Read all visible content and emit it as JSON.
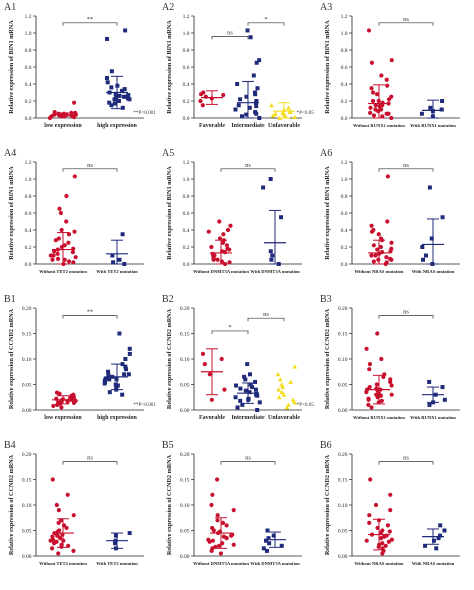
{
  "colors": {
    "red": "#c8102e",
    "navy": "#1f2a7a",
    "yellow": "#f3dd1e",
    "axis": "#222222"
  },
  "chart_data": [
    {
      "id": "A1",
      "type": "scatter",
      "ylabel": "Relative expression of BIN1 mRNA",
      "ylim": [
        0,
        1.2
      ],
      "yticks": [
        "0.0",
        "0.2",
        "0.4",
        "0.6",
        "0.8",
        "1.0",
        "1.2"
      ],
      "categories": [
        "low expression",
        "high expression"
      ],
      "colors": [
        "red",
        "navy"
      ],
      "points": [
        [
          0.0,
          0.01,
          0.02,
          0.02,
          0.03,
          0.03,
          0.04,
          0.04,
          0.05,
          0.05,
          0.06,
          0.06,
          0.07,
          0.04,
          0.03,
          0.02,
          0.18
        ],
        [
          0.12,
          0.15,
          0.17,
          0.18,
          0.2,
          0.22,
          0.23,
          0.24,
          0.25,
          0.26,
          0.27,
          0.28,
          0.3,
          0.32,
          0.34,
          0.36,
          0.38,
          0.42,
          0.47,
          0.55,
          0.93,
          1.03,
          0.2,
          0.22,
          0.25
        ]
      ],
      "means": [
        0.04,
        0.3
      ],
      "sds": [
        0.02,
        0.19
      ],
      "brackets": [
        {
          "from": 0,
          "to": 1,
          "label": "**",
          "y": 1.12
        }
      ],
      "note": "**P<0.001"
    },
    {
      "id": "A2",
      "type": "scatter",
      "ylabel": "Relative expression of BIN1 mRNA",
      "ylim": [
        0,
        1.2
      ],
      "yticks": [
        "0.0",
        "0.2",
        "0.4",
        "0.6",
        "0.8",
        "1.0",
        "1.2"
      ],
      "categories": [
        "Favorable",
        "Intermediate",
        "Unfavorable"
      ],
      "colors": [
        "red",
        "navy",
        "yellow"
      ],
      "points": [
        [
          0.15,
          0.2,
          0.23,
          0.25,
          0.27,
          0.28,
          0.3
        ],
        [
          0.0,
          0.02,
          0.04,
          0.05,
          0.07,
          0.1,
          0.12,
          0.14,
          0.15,
          0.18,
          0.2,
          0.22,
          0.25,
          0.28,
          0.3,
          0.35,
          0.4,
          0.5,
          0.65,
          0.68,
          0.95,
          1.03
        ],
        [
          0.0,
          0.01,
          0.02,
          0.03,
          0.04,
          0.05,
          0.06,
          0.07,
          0.08,
          0.1,
          0.12,
          0.15
        ]
      ],
      "means": [
        0.24,
        0.18,
        0.08
      ],
      "sds": [
        0.08,
        0.25,
        0.1
      ],
      "brackets": [
        {
          "from": 0,
          "to": 1,
          "label": "ns",
          "y": 0.96
        },
        {
          "from": 1,
          "to": 2,
          "label": "*",
          "y": 1.12
        }
      ],
      "note": "*P<0.05"
    },
    {
      "id": "A3",
      "type": "scatter",
      "ylabel": "Relative expression of BIN1 mRNA",
      "ylim": [
        0,
        1.2
      ],
      "yticks": [
        "0.0",
        "0.2",
        "0.4",
        "0.6",
        "0.8",
        "1.0",
        "1.2"
      ],
      "categories": [
        "Without RUNX1 mutation",
        "With RUNX1 mutation"
      ],
      "colors": [
        "red",
        "navy"
      ],
      "points": [
        [
          0.0,
          0.02,
          0.03,
          0.05,
          0.06,
          0.08,
          0.1,
          0.12,
          0.14,
          0.15,
          0.17,
          0.18,
          0.2,
          0.22,
          0.25,
          0.28,
          0.3,
          0.35,
          0.38,
          0.45,
          0.5,
          0.65,
          0.68,
          1.03,
          0.05,
          0.1,
          0.15,
          0.2
        ],
        [
          0.02,
          0.05,
          0.08,
          0.1,
          0.12,
          0.2
        ]
      ],
      "means": [
        0.17,
        0.09
      ],
      "sds": [
        0.22,
        0.12
      ],
      "brackets": [
        {
          "from": 0,
          "to": 1,
          "label": "ns",
          "y": 1.12
        }
      ]
    },
    {
      "id": "A4",
      "type": "scatter",
      "ylabel": "Relative expression of BIN1 mRNA",
      "ylim": [
        0,
        1.2
      ],
      "yticks": [
        "0.0",
        "0.2",
        "0.4",
        "0.6",
        "0.8",
        "1.0",
        "1.2"
      ],
      "categories": [
        "Without TET2 mutation",
        "With TET2 mutation"
      ],
      "colors": [
        "red",
        "navy"
      ],
      "points": [
        [
          0.0,
          0.02,
          0.03,
          0.05,
          0.06,
          0.08,
          0.1,
          0.12,
          0.14,
          0.15,
          0.17,
          0.18,
          0.2,
          0.22,
          0.25,
          0.28,
          0.3,
          0.35,
          0.38,
          0.4,
          0.5,
          0.6,
          0.65,
          0.8,
          1.03,
          0.05,
          0.1
        ],
        [
          0.0,
          0.02,
          0.05,
          0.1,
          0.35
        ]
      ],
      "means": [
        0.17,
        0.12
      ],
      "sds": [
        0.2,
        0.16
      ],
      "brackets": [
        {
          "from": 0,
          "to": 1,
          "label": "ns",
          "y": 1.12
        }
      ]
    },
    {
      "id": "A5",
      "type": "scatter",
      "ylabel": "Relative expression of BIN1 mRNA",
      "ylim": [
        0,
        1.2
      ],
      "yticks": [
        "0.0",
        "0.2",
        "0.4",
        "0.6",
        "0.8",
        "1.0",
        "1.2"
      ],
      "categories": [
        "Without DNMT3A mutation",
        "With DNMT3A mutation"
      ],
      "colors": [
        "red",
        "navy"
      ],
      "points": [
        [
          0.0,
          0.02,
          0.03,
          0.05,
          0.06,
          0.08,
          0.1,
          0.12,
          0.14,
          0.15,
          0.17,
          0.18,
          0.2,
          0.22,
          0.25,
          0.28,
          0.3,
          0.35,
          0.38,
          0.4,
          0.45,
          0.5,
          0.05,
          0.1
        ],
        [
          0.0,
          0.05,
          0.1,
          0.15,
          0.55,
          0.9,
          1.0
        ]
      ],
      "means": [
        0.13,
        0.25
      ],
      "sds": [
        0.15,
        0.38
      ],
      "brackets": [
        {
          "from": 0,
          "to": 1,
          "label": "ns",
          "y": 1.12
        }
      ]
    },
    {
      "id": "A6",
      "type": "scatter",
      "ylabel": "Relative expression of BIN1 mRNA",
      "ylim": [
        0,
        1.2
      ],
      "yticks": [
        "0.0",
        "0.2",
        "0.4",
        "0.6",
        "0.8",
        "1.0",
        "1.2"
      ],
      "categories": [
        "Without NRAS mutation",
        "With NRAS mutation"
      ],
      "colors": [
        "red",
        "navy"
      ],
      "points": [
        [
          0.0,
          0.02,
          0.03,
          0.05,
          0.06,
          0.08,
          0.1,
          0.12,
          0.14,
          0.15,
          0.17,
          0.18,
          0.2,
          0.22,
          0.25,
          0.28,
          0.3,
          0.35,
          0.38,
          0.4,
          0.45,
          0.5,
          1.03,
          0.05,
          0.1
        ],
        [
          0.0,
          0.05,
          0.1,
          0.2,
          0.3,
          0.55,
          0.9
        ]
      ],
      "means": [
        0.13,
        0.23
      ],
      "sds": [
        0.15,
        0.3
      ],
      "brackets": [
        {
          "from": 0,
          "to": 1,
          "label": "ns",
          "y": 1.12
        }
      ]
    },
    {
      "id": "B1",
      "type": "scatter",
      "ylabel": "Relative expression of CCND2 mRNA",
      "ylim": [
        0,
        0.2
      ],
      "yticks": [
        "0.00",
        "0.05",
        "0.10",
        "0.15",
        "0.20"
      ],
      "categories": [
        "low expression",
        "high expression"
      ],
      "colors": [
        "red",
        "navy"
      ],
      "points": [
        [
          0.005,
          0.008,
          0.01,
          0.012,
          0.014,
          0.015,
          0.016,
          0.018,
          0.02,
          0.021,
          0.022,
          0.024,
          0.025,
          0.026,
          0.028,
          0.03,
          0.032,
          0.034,
          0.018,
          0.02,
          0.016,
          0.022
        ],
        [
          0.03,
          0.035,
          0.04,
          0.045,
          0.048,
          0.05,
          0.052,
          0.055,
          0.058,
          0.06,
          0.062,
          0.065,
          0.068,
          0.07,
          0.075,
          0.08,
          0.085,
          0.09,
          0.1,
          0.11,
          0.12,
          0.15,
          0.06,
          0.07
        ]
      ],
      "means": [
        0.02,
        0.065
      ],
      "sds": [
        0.008,
        0.025
      ],
      "brackets": [
        {
          "from": 0,
          "to": 1,
          "label": "**",
          "y": 0.185
        }
      ],
      "note": "**P<0.001"
    },
    {
      "id": "B2",
      "type": "scatter",
      "ylabel": "Relative expression of CCND2 mRNA",
      "ylim": [
        0,
        0.2
      ],
      "yticks": [
        "0.00",
        "0.05",
        "0.10",
        "0.15",
        "0.20"
      ],
      "categories": [
        "Favorable",
        "Intermediate",
        "Unfavorable"
      ],
      "colors": [
        "red",
        "navy",
        "yellow"
      ],
      "points": [
        [
          0.02,
          0.04,
          0.07,
          0.09,
          0.1,
          0.11
        ],
        [
          0.0,
          0.005,
          0.01,
          0.015,
          0.018,
          0.02,
          0.022,
          0.025,
          0.028,
          0.03,
          0.032,
          0.035,
          0.038,
          0.04,
          0.042,
          0.045,
          0.048,
          0.05,
          0.055,
          0.06,
          0.065,
          0.07,
          0.09
        ],
        [
          0.005,
          0.01,
          0.015,
          0.02,
          0.025,
          0.03,
          0.035,
          0.04,
          0.045,
          0.05,
          0.055,
          0.06,
          0.07,
          0.085
        ]
      ],
      "means": [
        0.075,
        0.033
      ],
      "sds": [
        0.045,
        0.02
      ],
      "brackets": [
        {
          "from": 0,
          "to": 1,
          "label": "*",
          "y": 0.155
        },
        {
          "from": 1,
          "to": 2,
          "label": "ns",
          "y": 0.18
        }
      ],
      "note": "*P<0.05"
    },
    {
      "id": "B3",
      "type": "scatter",
      "ylabel": "Relative expression of CCND2 mRNA",
      "ylim": [
        0,
        0.2
      ],
      "yticks": [
        "0.00",
        "0.05",
        "0.10",
        "0.15",
        "0.20"
      ],
      "categories": [
        "Without RUNX1 mutation",
        "With RUNX1 mutation"
      ],
      "colors": [
        "red",
        "navy"
      ],
      "points": [
        [
          0.005,
          0.01,
          0.015,
          0.018,
          0.02,
          0.022,
          0.025,
          0.028,
          0.03,
          0.032,
          0.035,
          0.038,
          0.04,
          0.042,
          0.045,
          0.048,
          0.05,
          0.055,
          0.06,
          0.065,
          0.07,
          0.08,
          0.09,
          0.1,
          0.12,
          0.15,
          0.03,
          0.04
        ],
        [
          0.01,
          0.015,
          0.02,
          0.03,
          0.045,
          0.055
        ]
      ],
      "means": [
        0.04,
        0.03
      ],
      "sds": [
        0.028,
        0.015
      ],
      "brackets": [
        {
          "from": 0,
          "to": 1,
          "label": "ns",
          "y": 0.185
        }
      ]
    },
    {
      "id": "B4",
      "type": "scatter",
      "ylabel": "Relative expression of CCND2 mRNA",
      "ylim": [
        0,
        0.2
      ],
      "yticks": [
        "0.00",
        "0.05",
        "0.10",
        "0.15",
        "0.20"
      ],
      "categories": [
        "Without TET2 mutation",
        "With TET2 mutation"
      ],
      "colors": [
        "red",
        "navy"
      ],
      "points": [
        [
          0.005,
          0.01,
          0.015,
          0.018,
          0.02,
          0.022,
          0.025,
          0.028,
          0.03,
          0.032,
          0.035,
          0.038,
          0.04,
          0.042,
          0.045,
          0.048,
          0.05,
          0.055,
          0.06,
          0.065,
          0.07,
          0.08,
          0.09,
          0.1,
          0.12,
          0.15,
          0.03,
          0.04
        ],
        [
          0.015,
          0.025,
          0.03,
          0.04,
          0.045
        ]
      ],
      "means": [
        0.045,
        0.03
      ],
      "sds": [
        0.028,
        0.015
      ],
      "brackets": [
        {
          "from": 0,
          "to": 1,
          "label": "ns",
          "y": 0.185
        }
      ]
    },
    {
      "id": "B5",
      "type": "scatter",
      "ylabel": "Relative expression of CCND2 mRNA",
      "ylim": [
        0,
        0.2
      ],
      "yticks": [
        "0.00",
        "0.05",
        "0.10",
        "0.15",
        "0.20"
      ],
      "categories": [
        "Without DNMT3A mutation",
        "With DNMT3A mutation"
      ],
      "colors": [
        "red",
        "navy"
      ],
      "points": [
        [
          0.005,
          0.01,
          0.015,
          0.018,
          0.02,
          0.022,
          0.025,
          0.028,
          0.03,
          0.032,
          0.035,
          0.038,
          0.04,
          0.042,
          0.045,
          0.048,
          0.05,
          0.055,
          0.06,
          0.065,
          0.07,
          0.08,
          0.09,
          0.1,
          0.12,
          0.15
        ],
        [
          0.01,
          0.015,
          0.02,
          0.025,
          0.03,
          0.035,
          0.04,
          0.05
        ]
      ],
      "means": [
        0.045,
        0.032
      ],
      "sds": [
        0.03,
        0.015
      ],
      "brackets": [
        {
          "from": 0,
          "to": 1,
          "label": "ns",
          "y": 0.185
        }
      ]
    },
    {
      "id": "B6",
      "type": "scatter",
      "ylabel": "Relative expression of CCND2 mRNA",
      "ylim": [
        0,
        0.2
      ],
      "yticks": [
        "0.00",
        "0.05",
        "0.10",
        "0.15",
        "0.20"
      ],
      "categories": [
        "Without NRAS mutation",
        "With NRAS mutation"
      ],
      "colors": [
        "red",
        "navy"
      ],
      "points": [
        [
          0.005,
          0.01,
          0.015,
          0.018,
          0.02,
          0.022,
          0.025,
          0.028,
          0.03,
          0.032,
          0.035,
          0.038,
          0.04,
          0.042,
          0.045,
          0.048,
          0.05,
          0.055,
          0.06,
          0.065,
          0.07,
          0.08,
          0.09,
          0.1,
          0.12,
          0.15
        ],
        [
          0.015,
          0.02,
          0.03,
          0.035,
          0.04,
          0.05,
          0.06
        ]
      ],
      "means": [
        0.042,
        0.038
      ],
      "sds": [
        0.03,
        0.015
      ],
      "brackets": [
        {
          "from": 0,
          "to": 1,
          "label": "ns",
          "y": 0.185
        }
      ]
    }
  ]
}
